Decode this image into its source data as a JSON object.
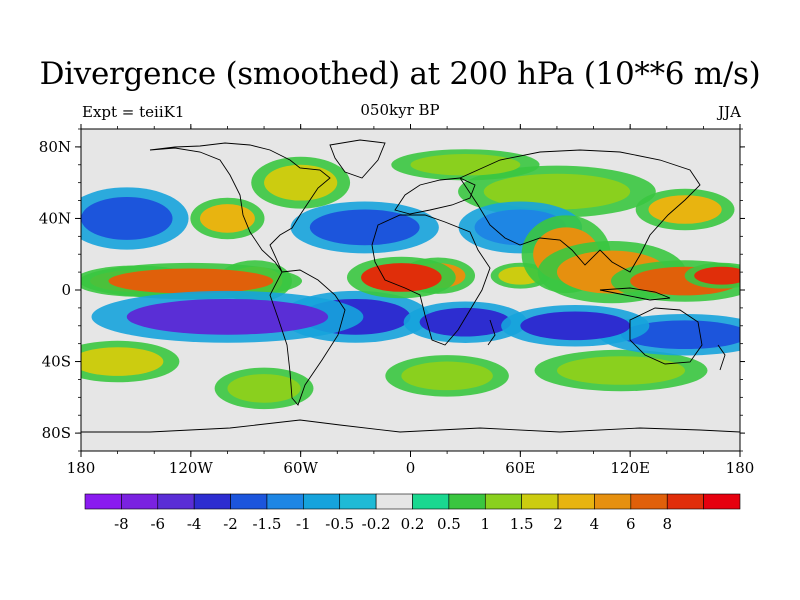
{
  "title": "Divergence (smoothed) at 200 hPa (10**6 m/s)",
  "left_label": "Expt = teiiK1",
  "center_label": "050kyr BP",
  "right_label": "JJA",
  "map": {
    "projection": "cylindrical equidistant",
    "lon_range": [
      -180,
      180
    ],
    "lat_range": [
      -90,
      90
    ],
    "lat_ticks": [
      {
        "label": "80N",
        "value": 80
      },
      {
        "label": "40N",
        "value": 40
      },
      {
        "label": "0",
        "value": 0
      },
      {
        "label": "40S",
        "value": -40
      },
      {
        "label": "80S",
        "value": -80
      }
    ],
    "lon_ticks": [
      {
        "label": "180",
        "value": -180
      },
      {
        "label": "120W",
        "value": -120
      },
      {
        "label": "60W",
        "value": -60
      },
      {
        "label": "0",
        "value": 0
      },
      {
        "label": "60E",
        "value": 60
      },
      {
        "label": "120E",
        "value": 120
      },
      {
        "label": "180",
        "value": 180
      }
    ]
  },
  "colorbar": {
    "colors": [
      "#8a1bf0",
      "#7a22e0",
      "#5a2ed6",
      "#2d2dd0",
      "#1c55dc",
      "#1e86e4",
      "#16a3dc",
      "#1fbad6",
      "#e6e6e6",
      "#1ad890",
      "#3ac640",
      "#8ad01e",
      "#cccc10",
      "#e8b410",
      "#e6900f",
      "#e0600a",
      "#e02e0a",
      "#e6000e"
    ],
    "labels": [
      "-8",
      "-6",
      "-4",
      "-2",
      "-1.5",
      "-1",
      "-0.5",
      "-0.2",
      "0.2",
      "0.5",
      "1",
      "1.5",
      "2",
      "4",
      "6",
      "8"
    ]
  },
  "field_blobs": [
    {
      "lon": -120,
      "lat": 5,
      "rx": 45,
      "ry": 7,
      "v": 6
    },
    {
      "lon": -150,
      "lat": 5,
      "rx": 25,
      "ry": 6,
      "v": 4
    },
    {
      "lon": -85,
      "lat": 5,
      "rx": 15,
      "ry": 8,
      "v": 2
    },
    {
      "lon": -5,
      "lat": 7,
      "rx": 22,
      "ry": 8,
      "v": 8
    },
    {
      "lon": 15,
      "lat": 8,
      "rx": 15,
      "ry": 7,
      "v": 4
    },
    {
      "lon": 85,
      "lat": 20,
      "rx": 18,
      "ry": 15,
      "v": 4
    },
    {
      "lon": 110,
      "lat": 10,
      "rx": 30,
      "ry": 12,
      "v": 4
    },
    {
      "lon": 150,
      "lat": 5,
      "rx": 30,
      "ry": 8,
      "v": 6
    },
    {
      "lon": 170,
      "lat": 8,
      "rx": 15,
      "ry": 5,
      "v": 8
    },
    {
      "lon": 60,
      "lat": 8,
      "rx": 12,
      "ry": 5,
      "v": 1.5
    },
    {
      "lon": -100,
      "lat": -15,
      "rx": 55,
      "ry": 10,
      "v": -6
    },
    {
      "lon": -30,
      "lat": -15,
      "rx": 30,
      "ry": 10,
      "v": -4
    },
    {
      "lon": 30,
      "lat": -18,
      "rx": 25,
      "ry": 8,
      "v": -4
    },
    {
      "lon": 90,
      "lat": -20,
      "rx": 30,
      "ry": 8,
      "v": -4
    },
    {
      "lon": 150,
      "lat": -25,
      "rx": 35,
      "ry": 8,
      "v": -2
    },
    {
      "lon": -155,
      "lat": 40,
      "rx": 25,
      "ry": 12,
      "v": -2
    },
    {
      "lon": -25,
      "lat": 35,
      "rx": 30,
      "ry": 10,
      "v": -2
    },
    {
      "lon": 60,
      "lat": 35,
      "rx": 25,
      "ry": 10,
      "v": -1.5
    },
    {
      "lon": -160,
      "lat": -40,
      "rx": 25,
      "ry": 8,
      "v": 1.5
    },
    {
      "lon": -80,
      "lat": -55,
      "rx": 20,
      "ry": 8,
      "v": 1
    },
    {
      "lon": 20,
      "lat": -48,
      "rx": 25,
      "ry": 8,
      "v": 1
    },
    {
      "lon": 115,
      "lat": -45,
      "rx": 35,
      "ry": 8,
      "v": 1
    },
    {
      "lon": -100,
      "lat": 40,
      "rx": 15,
      "ry": 8,
      "v": 2
    },
    {
      "lon": -60,
      "lat": 60,
      "rx": 20,
      "ry": 10,
      "v": 1.5
    },
    {
      "lon": 80,
      "lat": 55,
      "rx": 40,
      "ry": 10,
      "v": 1
    },
    {
      "lon": 150,
      "lat": 45,
      "rx": 20,
      "ry": 8,
      "v": 2
    },
    {
      "lon": 30,
      "lat": 70,
      "rx": 30,
      "ry": 6,
      "v": 1
    }
  ]
}
